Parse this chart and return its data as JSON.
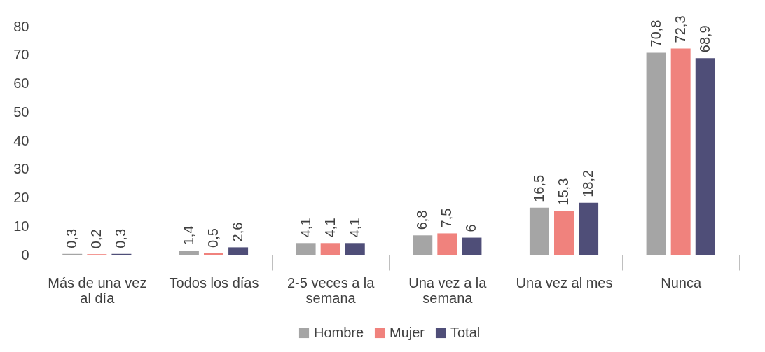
{
  "chart_data": {
    "type": "bar",
    "categories": [
      "Más de una vez al día",
      "Todos los días",
      "2-5 veces a la semana",
      "Una vez a la semana",
      "Una vez al mes",
      "Nunca"
    ],
    "series": [
      {
        "name": "Hombre",
        "color": "#a5a5a5",
        "values": [
          0.3,
          1.4,
          4.1,
          6.8,
          16.5,
          70.8
        ],
        "value_labels": [
          "0,3",
          "1,4",
          "4,1",
          "6,8",
          "16,5",
          "70,8"
        ]
      },
      {
        "name": "Mujer",
        "color": "#f0827d",
        "values": [
          0.2,
          0.5,
          4.1,
          7.5,
          15.3,
          72.3
        ],
        "value_labels": [
          "0,2",
          "0,5",
          "4,1",
          "7,5",
          "15,3",
          "72,3"
        ]
      },
      {
        "name": "Total",
        "color": "#4f4e78",
        "values": [
          0.3,
          2.6,
          4.1,
          6,
          18.2,
          68.9
        ],
        "value_labels": [
          "0,3",
          "2,6",
          "4,1",
          "6",
          "18,2",
          "68,9"
        ]
      }
    ],
    "ylim": [
      0,
      80
    ],
    "yticks": [
      0,
      10,
      20,
      30,
      40,
      50,
      60,
      70,
      80
    ],
    "grid": false,
    "legend": "bottom"
  }
}
